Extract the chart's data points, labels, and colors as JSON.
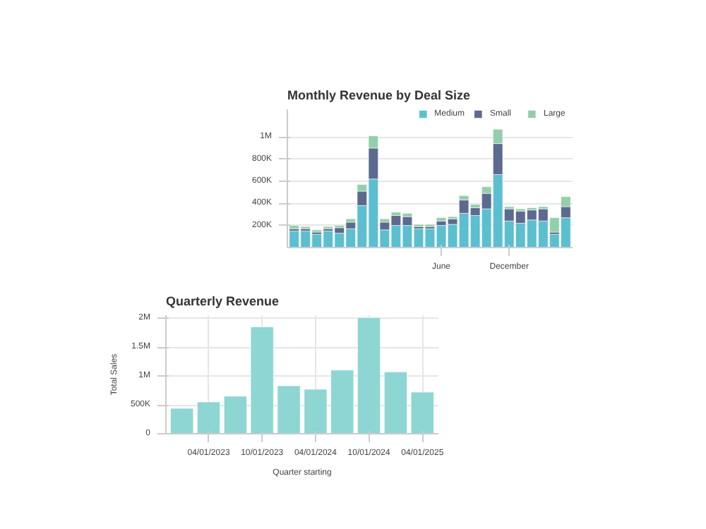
{
  "chart_data": [
    {
      "type": "bar",
      "title": "Monthly Revenue by Deal Size",
      "stacked": true,
      "legend": "top right",
      "grid": "y",
      "categories": [
        null,
        null,
        null,
        null,
        null,
        null,
        null,
        null,
        null,
        null,
        null,
        null,
        null,
        "June",
        null,
        null,
        null,
        null,
        null,
        "December",
        null,
        null,
        null,
        null,
        null
      ],
      "series": [
        {
          "name": "Medium",
          "color": "#5bbfcf",
          "values": [
            150000,
            150000,
            120000,
            150000,
            130000,
            170000,
            380000,
            620000,
            160000,
            200000,
            200000,
            170000,
            170000,
            200000,
            210000,
            310000,
            290000,
            350000,
            660000,
            240000,
            220000,
            250000,
            240000,
            120000,
            270000
          ]
        },
        {
          "name": "Small",
          "color": "#5d6a8f",
          "values": [
            20000,
            20000,
            20000,
            20000,
            50000,
            60000,
            130000,
            280000,
            70000,
            90000,
            80000,
            20000,
            20000,
            40000,
            50000,
            120000,
            70000,
            140000,
            280000,
            110000,
            110000,
            90000,
            110000,
            20000,
            100000
          ]
        },
        {
          "name": "Large",
          "color": "#93cfab",
          "values": [
            30000,
            20000,
            20000,
            20000,
            20000,
            30000,
            60000,
            110000,
            30000,
            30000,
            30000,
            20000,
            20000,
            30000,
            20000,
            40000,
            30000,
            60000,
            130000,
            20000,
            20000,
            20000,
            20000,
            130000,
            90000
          ]
        }
      ],
      "ylim": [
        0,
        1250000
      ],
      "yticks": [
        {
          "value": 200000,
          "label": "200K"
        },
        {
          "value": 400000,
          "label": "400K"
        },
        {
          "value": 600000,
          "label": "600K"
        },
        {
          "value": 800000,
          "label": "800K"
        },
        {
          "value": 1000000,
          "label": "1M"
        }
      ]
    },
    {
      "type": "bar",
      "title": "Quarterly Revenue",
      "xlabel": "Quarter starting",
      "ylabel": "Total Sales",
      "grid": true,
      "categories": [
        null,
        "04/01/2023",
        null,
        "10/01/2023",
        null,
        "04/01/2024",
        null,
        "10/01/2024",
        null,
        "04/01/2025"
      ],
      "series": [
        {
          "color": "#8dd6d4",
          "values": [
            440000,
            550000,
            650000,
            1850000,
            830000,
            770000,
            1100000,
            2010000,
            1070000,
            720000
          ]
        }
      ],
      "ylim": [
        0,
        2050000
      ],
      "yticks": [
        0,
        {
          "value": 500000,
          "label": "500K"
        },
        {
          "value": 1000000,
          "label": "1M"
        },
        {
          "value": 1500000,
          "label": "1.5M"
        },
        {
          "value": 2000000,
          "label": "2M"
        }
      ]
    }
  ]
}
